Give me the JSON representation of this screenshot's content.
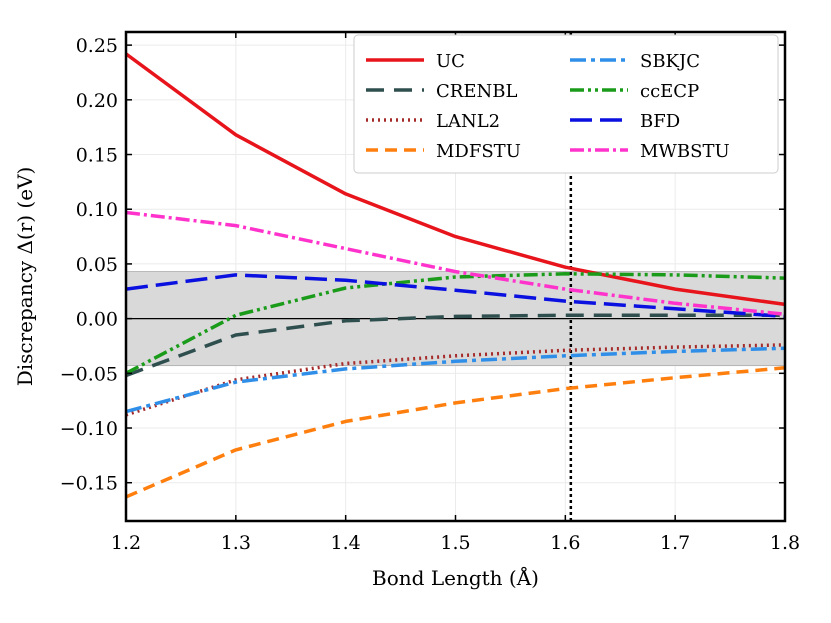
{
  "chart_data": {
    "type": "line",
    "title": "",
    "xlabel": "Bond Length (Å)",
    "ylabel": "Discrepancy Δ(r) (eV)",
    "xlim": [
      1.2,
      1.8
    ],
    "ylim": [
      -0.185,
      0.262
    ],
    "x_ticks": [
      1.2,
      1.3,
      1.4,
      1.5,
      1.6,
      1.7,
      1.8
    ],
    "x_tick_labels": [
      "1.2",
      "1.3",
      "1.4",
      "1.5",
      "1.6",
      "1.7",
      "1.8"
    ],
    "y_ticks": [
      -0.15,
      -0.1,
      -0.05,
      0.0,
      0.05,
      0.1,
      0.15,
      0.2,
      0.25
    ],
    "y_tick_labels": [
      "−0.15",
      "−0.10",
      "−0.05",
      "0.00",
      "0.05",
      "0.10",
      "0.15",
      "0.20",
      "0.25"
    ],
    "grid": true,
    "legend_position": "top-right",
    "shaded_band": {
      "ymin": -0.043,
      "ymax": 0.043,
      "color": "#d9d9d9"
    },
    "zero_line": 0.0,
    "vertical_line": {
      "x": 1.605,
      "style": "dotted",
      "color": "#000000"
    },
    "x": [
      1.2,
      1.3,
      1.4,
      1.5,
      1.6,
      1.7,
      1.8
    ],
    "series": [
      {
        "name": "UC",
        "color": "#e8141b",
        "dash": "",
        "width": 3.5,
        "values": [
          0.242,
          0.168,
          0.114,
          0.075,
          0.047,
          0.027,
          0.013
        ]
      },
      {
        "name": "CRENBL",
        "color": "#2f4f4f",
        "dash": "18,10",
        "width": 3.5,
        "values": [
          -0.052,
          -0.015,
          -0.002,
          0.002,
          0.003,
          0.003,
          0.003
        ]
      },
      {
        "name": "LANL2",
        "color": "#a52a2a",
        "dash": "2,4",
        "width": 3.5,
        "values": [
          -0.088,
          -0.056,
          -0.041,
          -0.034,
          -0.029,
          -0.026,
          -0.024
        ]
      },
      {
        "name": "MDFSTU",
        "color": "#ff7f0e",
        "dash": "12,7",
        "width": 3.5,
        "values": [
          -0.163,
          -0.12,
          -0.094,
          -0.077,
          -0.064,
          -0.054,
          -0.045
        ]
      },
      {
        "name": "SBKJC",
        "color": "#2f8fe8",
        "dash": "16,5,4,5",
        "width": 3.5,
        "values": [
          -0.085,
          -0.058,
          -0.046,
          -0.039,
          -0.034,
          -0.03,
          -0.027
        ]
      },
      {
        "name": "ccECP",
        "color": "#1a9c1a",
        "dash": "14,4,3,4,3,4",
        "width": 3.5,
        "values": [
          -0.05,
          0.003,
          0.028,
          0.038,
          0.041,
          0.04,
          0.037
        ]
      },
      {
        "name": "BFD",
        "color": "#0a10e0",
        "dash": "22,8",
        "width": 3.5,
        "values": [
          0.027,
          0.04,
          0.035,
          0.026,
          0.016,
          0.009,
          0.002
        ]
      },
      {
        "name": "MWBSTU",
        "color": "#ff33cc",
        "dash": "14,4,3,4",
        "width": 3.5,
        "values": [
          0.097,
          0.085,
          0.064,
          0.043,
          0.027,
          0.014,
          0.004
        ]
      }
    ]
  }
}
